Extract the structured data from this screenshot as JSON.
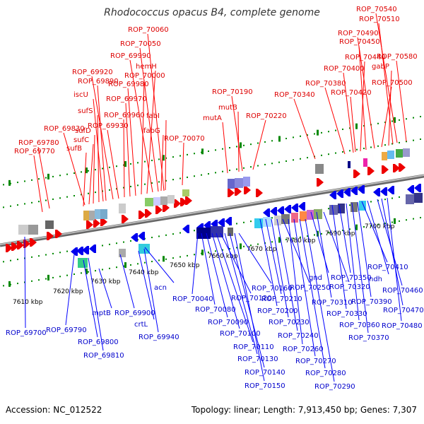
{
  "title": "Rhodococcus opacus B4, complete genome",
  "footer": {
    "accession": "Accession: NC_012522",
    "topology": "Topology: linear; Length: 7,913,450 bp; Genes: 7,307"
  },
  "colors": {
    "top_label": "#dd0000",
    "bottom_label": "#0000cc",
    "top_leader": "#ff0000",
    "bottom_leader": "#0000ff",
    "backbone": "#999999",
    "tick": "#008800"
  },
  "scale_labels": [
    "7610 kbp",
    "7620 kbp",
    "7630 kbp",
    "7640 kbp",
    "7650 kbp",
    "7660 kbp",
    "7670 kbp",
    "7680 kbp",
    "7690 kbp",
    "7700 kbp"
  ],
  "top_labels": [
    {
      "text": "ROP_69770"
    },
    {
      "text": "ROP_69780"
    },
    {
      "text": "sufB"
    },
    {
      "text": "ROP_69830"
    },
    {
      "text": "sufC"
    },
    {
      "text": "sufD"
    },
    {
      "text": "sufS"
    },
    {
      "text": "iscU"
    },
    {
      "text": "ROP_69890"
    },
    {
      "text": "ROP_69920"
    },
    {
      "text": "ROP_69930"
    },
    {
      "text": "ROP_69960"
    },
    {
      "text": "ROP_69970"
    },
    {
      "text": "ROP_69980"
    },
    {
      "text": "ROP_70000"
    },
    {
      "text": "hemH"
    },
    {
      "text": "ROP_69990"
    },
    {
      "text": "ROP_70050"
    },
    {
      "text": "ROP_70060"
    },
    {
      "text": "fabG"
    },
    {
      "text": "fabI"
    },
    {
      "text": "ROP_70070"
    },
    {
      "text": "mutA"
    },
    {
      "text": "mutB"
    },
    {
      "text": "ROP_70190"
    },
    {
      "text": "ROP_70220"
    },
    {
      "text": "ROP_70340"
    },
    {
      "text": "ROP_70380"
    },
    {
      "text": "ROP_70400"
    },
    {
      "text": "ROP_70420"
    },
    {
      "text": "ROP_70440"
    },
    {
      "text": "ROP_70450"
    },
    {
      "text": "ROP_70490"
    },
    {
      "text": "ROP_70500"
    },
    {
      "text": "gabP"
    },
    {
      "text": "ROP_70510"
    },
    {
      "text": "ROP_70540"
    },
    {
      "text": "ROP_70580"
    }
  ],
  "bottom_labels": [
    {
      "text": "ROP_69700"
    },
    {
      "text": "ROP_69790"
    },
    {
      "text": "ROP_69800"
    },
    {
      "text": "ROP_69810"
    },
    {
      "text": "mptB"
    },
    {
      "text": "ROP_69900"
    },
    {
      "text": "crtL"
    },
    {
      "text": "ROP_69940"
    },
    {
      "text": "acn"
    },
    {
      "text": "ROP_70040"
    },
    {
      "text": "ROP_70080"
    },
    {
      "text": "ROP_70090"
    },
    {
      "text": "ROP_70100"
    },
    {
      "text": "ROP_70110"
    },
    {
      "text": "ROP_70120"
    },
    {
      "text": "ROP_70130"
    },
    {
      "text": "ROP_70140"
    },
    {
      "text": "ROP_70150"
    },
    {
      "text": "ROP_70160"
    },
    {
      "text": "ROP_70200"
    },
    {
      "text": "ROP_70210"
    },
    {
      "text": "ROP_70230"
    },
    {
      "text": "ROP_70240"
    },
    {
      "text": "ROP_70250"
    },
    {
      "text": "ROP_70260"
    },
    {
      "text": "ROP_70270"
    },
    {
      "text": "ROP_70280"
    },
    {
      "text": "ROP_70290"
    },
    {
      "text": "gnd"
    },
    {
      "text": "ROP_70310"
    },
    {
      "text": "ROP_70320"
    },
    {
      "text": "ROP_70330"
    },
    {
      "text": "ROP_70350"
    },
    {
      "text": "ROP_70360"
    },
    {
      "text": "ROP_70370"
    },
    {
      "text": "ROP_70390"
    },
    {
      "text": "ROP_70410"
    },
    {
      "text": "ndh"
    },
    {
      "text": "ROP_70460"
    },
    {
      "text": "ROP_70470"
    },
    {
      "text": "ROP_70480"
    }
  ]
}
